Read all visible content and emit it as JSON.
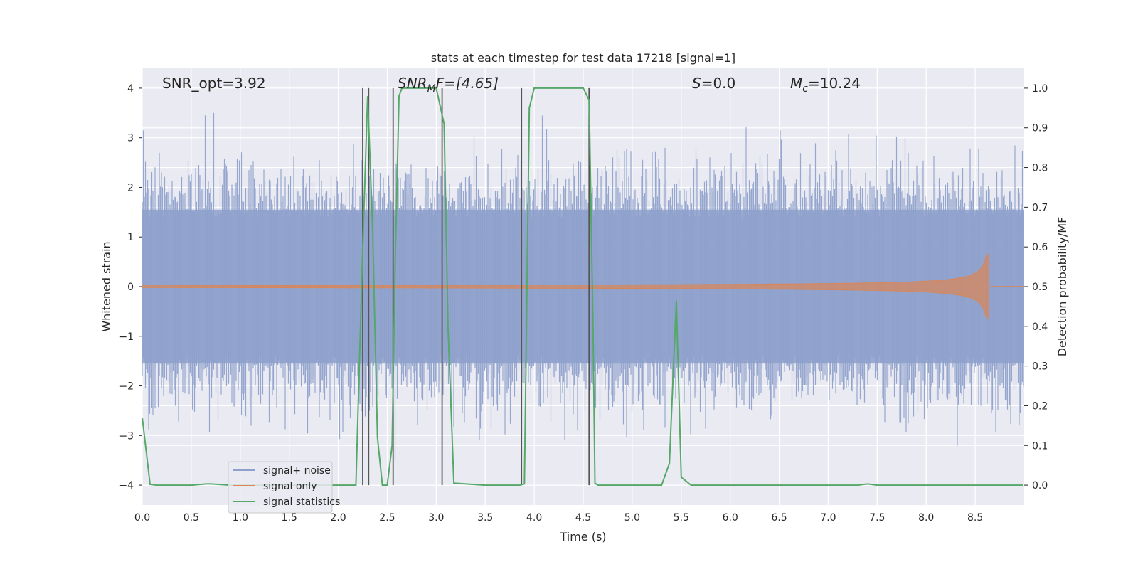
{
  "chart_data": {
    "type": "line",
    "title": "stats at each timestep for test data 17218 [signal=1]",
    "xlabel": "Time (s)",
    "ylabel": "Whitened strain",
    "ylabel_right": "Detection probability/MF",
    "xlim": [
      0,
      9
    ],
    "ylim": [
      -4.4,
      4.4
    ],
    "ylim_right": [
      -0.05,
      1.05
    ],
    "x_ticks": [
      "0.0",
      "0.5",
      "1.0",
      "1.5",
      "2.0",
      "2.5",
      "3.0",
      "3.5",
      "4.0",
      "4.5",
      "5.0",
      "5.5",
      "6.0",
      "6.5",
      "7.0",
      "7.5",
      "8.0",
      "8.5"
    ],
    "y_ticks": [
      "4",
      "3",
      "2",
      "1",
      "0",
      "−1",
      "−2",
      "−3",
      "−4"
    ],
    "y_right_ticks": [
      "1.0",
      "0.9",
      "0.8",
      "0.7",
      "0.6",
      "0.5",
      "0.4",
      "0.3",
      "0.2",
      "0.1",
      "0.0"
    ],
    "grid": true,
    "legend_position": "lower-left",
    "annotations": {
      "snr_opt": "SNR_opt=3.92",
      "snr_mf_name": "SNR",
      "snr_mf_sub": "M",
      "snr_mf_rest": "F=[4.65]",
      "s_name": "S",
      "s_rest": "=0.0",
      "mc_name": "M",
      "mc_sub": "c",
      "mc_rest": "=10.24"
    },
    "series": [
      {
        "name": "signal+ noise",
        "color": "#8da0cb",
        "note": "whitened strain noise ~ +/-2.5, rendered procedurally"
      },
      {
        "name": "signal only",
        "color": "#dd8452",
        "chirp_end": 8.65,
        "chirp_peak_amplitude": 0.65
      },
      {
        "name": "signal statistics",
        "color": "#55a868",
        "x": [
          0.0,
          0.08,
          0.15,
          0.5,
          0.65,
          0.7,
          0.9,
          1.5,
          2.0,
          2.18,
          2.25,
          2.3,
          2.35,
          2.4,
          2.45,
          2.5,
          2.55,
          2.58,
          2.62,
          2.65,
          3.0,
          3.08,
          3.12,
          3.18,
          3.5,
          3.85,
          3.9,
          3.95,
          4.0,
          4.5,
          4.56,
          4.6,
          4.62,
          4.65,
          5.0,
          5.3,
          5.38,
          5.45,
          5.5,
          5.6,
          6.0,
          7.0,
          7.3,
          7.4,
          7.5,
          8.0,
          8.5,
          8.99
        ],
        "y": [
          0.17,
          0.002,
          0.0,
          0.0,
          0.003,
          0.003,
          0.0,
          0.0,
          0.0,
          0.0,
          0.6,
          0.98,
          0.65,
          0.12,
          0.0,
          0.0,
          0.1,
          0.55,
          0.98,
          1.0,
          1.0,
          0.91,
          0.4,
          0.005,
          0.0,
          0.0,
          0.003,
          0.95,
          1.0,
          1.0,
          0.97,
          0.4,
          0.005,
          0.0,
          0.0,
          0.0,
          0.055,
          0.465,
          0.02,
          0.0,
          0.0,
          0.0,
          0.0,
          0.003,
          0.0,
          0.0,
          0.0,
          0.0
        ]
      }
    ],
    "vlines_x": [
      2.25,
      2.31,
      2.56,
      3.06,
      3.87,
      4.56
    ]
  },
  "legend": {
    "items": [
      {
        "label": "signal+ noise",
        "color": "#8da0cb"
      },
      {
        "label": "signal only",
        "color": "#dd8452"
      },
      {
        "label": "signal statistics",
        "color": "#55a868"
      }
    ]
  },
  "colors": {
    "axes_bg": "#eaeaf2",
    "grid": "#ffffff",
    "vline": "#555555"
  }
}
